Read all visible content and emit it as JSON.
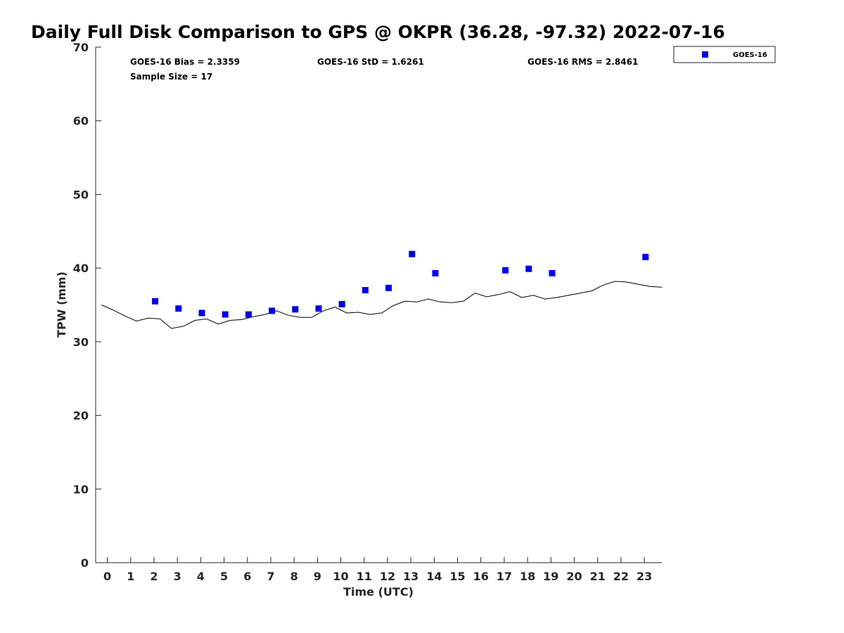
{
  "colors": {
    "goes16": "#0000e6",
    "gps": "#000000",
    "axis": "#262626"
  },
  "chart_data": {
    "type": "scatter",
    "title": "Daily Full Disk Comparison to GPS @ OKPR (36.28, -97.32) 2022-07-16",
    "xlabel": "Time (UTC)",
    "ylabel": "TPW (mm)",
    "xlim": [
      -0.5,
      23.75
    ],
    "ylim": [
      0,
      70
    ],
    "xticks": [
      0,
      1,
      2,
      3,
      4,
      5,
      6,
      7,
      8,
      9,
      10,
      11,
      12,
      13,
      14,
      15,
      16,
      17,
      18,
      19,
      20,
      21,
      22,
      23
    ],
    "yticks": [
      0,
      10,
      20,
      30,
      40,
      50,
      60,
      70
    ],
    "grid": false,
    "legend_position": "top-right",
    "stats": {
      "bias": "GOES-16 Bias = 2.3359",
      "std": "GOES-16 StD = 1.6261",
      "rms": "GOES-16 RMS = 2.8461",
      "sample_size": "Sample Size = 17"
    },
    "series": [
      {
        "name": "GOES-16",
        "type": "scatter",
        "x": [
          2.05,
          3.05,
          4.05,
          5.05,
          6.05,
          7.05,
          8.05,
          9.05,
          10.05,
          11.05,
          12.05,
          13.05,
          14.05,
          17.05,
          18.05,
          19.05,
          23.05
        ],
        "y": [
          35.5,
          34.5,
          33.9,
          33.7,
          33.7,
          34.2,
          34.4,
          34.5,
          35.1,
          37.0,
          37.3,
          41.9,
          39.3,
          39.7,
          39.9,
          39.3,
          41.5
        ]
      },
      {
        "type": "line",
        "x": [
          -0.25,
          0.25,
          0.75,
          1.25,
          1.75,
          2.25,
          2.75,
          3.25,
          3.75,
          4.25,
          4.75,
          5.25,
          5.75,
          6.25,
          6.75,
          7.25,
          7.75,
          8.25,
          8.75,
          9.25,
          9.75,
          10.25,
          10.75,
          11.25,
          11.75,
          12.25,
          12.75,
          13.25,
          13.75,
          14.25,
          14.75,
          15.25,
          15.75,
          16.25,
          16.75,
          17.25,
          17.75,
          18.25,
          18.75,
          19.25,
          19.75,
          20.25,
          20.75,
          21.25,
          21.75,
          22.25,
          22.75,
          23.25,
          23.75
        ],
        "y": [
          35.0,
          34.3,
          33.5,
          32.8,
          33.2,
          33.1,
          31.8,
          32.1,
          32.9,
          33.1,
          32.4,
          32.9,
          33.0,
          33.4,
          33.7,
          34.2,
          33.6,
          33.3,
          33.3,
          34.2,
          34.7,
          33.9,
          34.0,
          33.7,
          33.9,
          34.9,
          35.5,
          35.4,
          35.8,
          35.4,
          35.3,
          35.5,
          36.6,
          36.1,
          36.4,
          36.8,
          36.0,
          36.3,
          35.8,
          36.0,
          36.3,
          36.6,
          36.9,
          37.7,
          38.2,
          38.1,
          37.8,
          37.5,
          37.4
        ]
      }
    ]
  }
}
